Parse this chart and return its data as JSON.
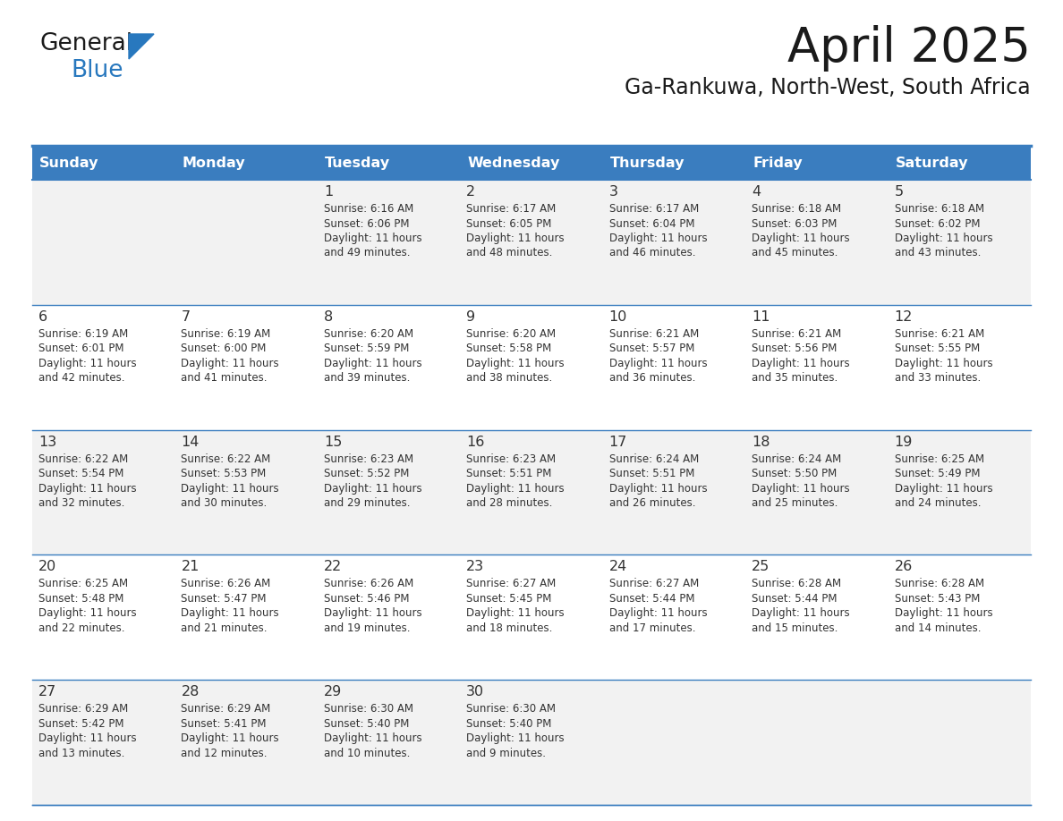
{
  "title": "April 2025",
  "subtitle": "Ga-Rankuwa, North-West, South Africa",
  "days_of_week": [
    "Sunday",
    "Monday",
    "Tuesday",
    "Wednesday",
    "Thursday",
    "Friday",
    "Saturday"
  ],
  "header_bg": "#3A7DBF",
  "header_text_color": "#FFFFFF",
  "cell_bg_light": "#F2F2F2",
  "cell_bg_white": "#FFFFFF",
  "cell_border_color": "#3A7DBF",
  "title_color": "#1a1a1a",
  "subtitle_color": "#1a1a1a",
  "logo_general_color": "#1a1a1a",
  "logo_blue_color": "#2878BE",
  "text_color": "#333333",
  "calendar_data": [
    [
      null,
      null,
      {
        "day": 1,
        "sunrise": "6:16 AM",
        "sunset": "6:06 PM",
        "daylight": "11 hours and 49 minutes."
      },
      {
        "day": 2,
        "sunrise": "6:17 AM",
        "sunset": "6:05 PM",
        "daylight": "11 hours and 48 minutes."
      },
      {
        "day": 3,
        "sunrise": "6:17 AM",
        "sunset": "6:04 PM",
        "daylight": "11 hours and 46 minutes."
      },
      {
        "day": 4,
        "sunrise": "6:18 AM",
        "sunset": "6:03 PM",
        "daylight": "11 hours and 45 minutes."
      },
      {
        "day": 5,
        "sunrise": "6:18 AM",
        "sunset": "6:02 PM",
        "daylight": "11 hours and 43 minutes."
      }
    ],
    [
      {
        "day": 6,
        "sunrise": "6:19 AM",
        "sunset": "6:01 PM",
        "daylight": "11 hours and 42 minutes."
      },
      {
        "day": 7,
        "sunrise": "6:19 AM",
        "sunset": "6:00 PM",
        "daylight": "11 hours and 41 minutes."
      },
      {
        "day": 8,
        "sunrise": "6:20 AM",
        "sunset": "5:59 PM",
        "daylight": "11 hours and 39 minutes."
      },
      {
        "day": 9,
        "sunrise": "6:20 AM",
        "sunset": "5:58 PM",
        "daylight": "11 hours and 38 minutes."
      },
      {
        "day": 10,
        "sunrise": "6:21 AM",
        "sunset": "5:57 PM",
        "daylight": "11 hours and 36 minutes."
      },
      {
        "day": 11,
        "sunrise": "6:21 AM",
        "sunset": "5:56 PM",
        "daylight": "11 hours and 35 minutes."
      },
      {
        "day": 12,
        "sunrise": "6:21 AM",
        "sunset": "5:55 PM",
        "daylight": "11 hours and 33 minutes."
      }
    ],
    [
      {
        "day": 13,
        "sunrise": "6:22 AM",
        "sunset": "5:54 PM",
        "daylight": "11 hours and 32 minutes."
      },
      {
        "day": 14,
        "sunrise": "6:22 AM",
        "sunset": "5:53 PM",
        "daylight": "11 hours and 30 minutes."
      },
      {
        "day": 15,
        "sunrise": "6:23 AM",
        "sunset": "5:52 PM",
        "daylight": "11 hours and 29 minutes."
      },
      {
        "day": 16,
        "sunrise": "6:23 AM",
        "sunset": "5:51 PM",
        "daylight": "11 hours and 28 minutes."
      },
      {
        "day": 17,
        "sunrise": "6:24 AM",
        "sunset": "5:51 PM",
        "daylight": "11 hours and 26 minutes."
      },
      {
        "day": 18,
        "sunrise": "6:24 AM",
        "sunset": "5:50 PM",
        "daylight": "11 hours and 25 minutes."
      },
      {
        "day": 19,
        "sunrise": "6:25 AM",
        "sunset": "5:49 PM",
        "daylight": "11 hours and 24 minutes."
      }
    ],
    [
      {
        "day": 20,
        "sunrise": "6:25 AM",
        "sunset": "5:48 PM",
        "daylight": "11 hours and 22 minutes."
      },
      {
        "day": 21,
        "sunrise": "6:26 AM",
        "sunset": "5:47 PM",
        "daylight": "11 hours and 21 minutes."
      },
      {
        "day": 22,
        "sunrise": "6:26 AM",
        "sunset": "5:46 PM",
        "daylight": "11 hours and 19 minutes."
      },
      {
        "day": 23,
        "sunrise": "6:27 AM",
        "sunset": "5:45 PM",
        "daylight": "11 hours and 18 minutes."
      },
      {
        "day": 24,
        "sunrise": "6:27 AM",
        "sunset": "5:44 PM",
        "daylight": "11 hours and 17 minutes."
      },
      {
        "day": 25,
        "sunrise": "6:28 AM",
        "sunset": "5:44 PM",
        "daylight": "11 hours and 15 minutes."
      },
      {
        "day": 26,
        "sunrise": "6:28 AM",
        "sunset": "5:43 PM",
        "daylight": "11 hours and 14 minutes."
      }
    ],
    [
      {
        "day": 27,
        "sunrise": "6:29 AM",
        "sunset": "5:42 PM",
        "daylight": "11 hours and 13 minutes."
      },
      {
        "day": 28,
        "sunrise": "6:29 AM",
        "sunset": "5:41 PM",
        "daylight": "11 hours and 12 minutes."
      },
      {
        "day": 29,
        "sunrise": "6:30 AM",
        "sunset": "5:40 PM",
        "daylight": "11 hours and 10 minutes."
      },
      {
        "day": 30,
        "sunrise": "6:30 AM",
        "sunset": "5:40 PM",
        "daylight": "11 hours and 9 minutes."
      },
      null,
      null,
      null
    ]
  ]
}
